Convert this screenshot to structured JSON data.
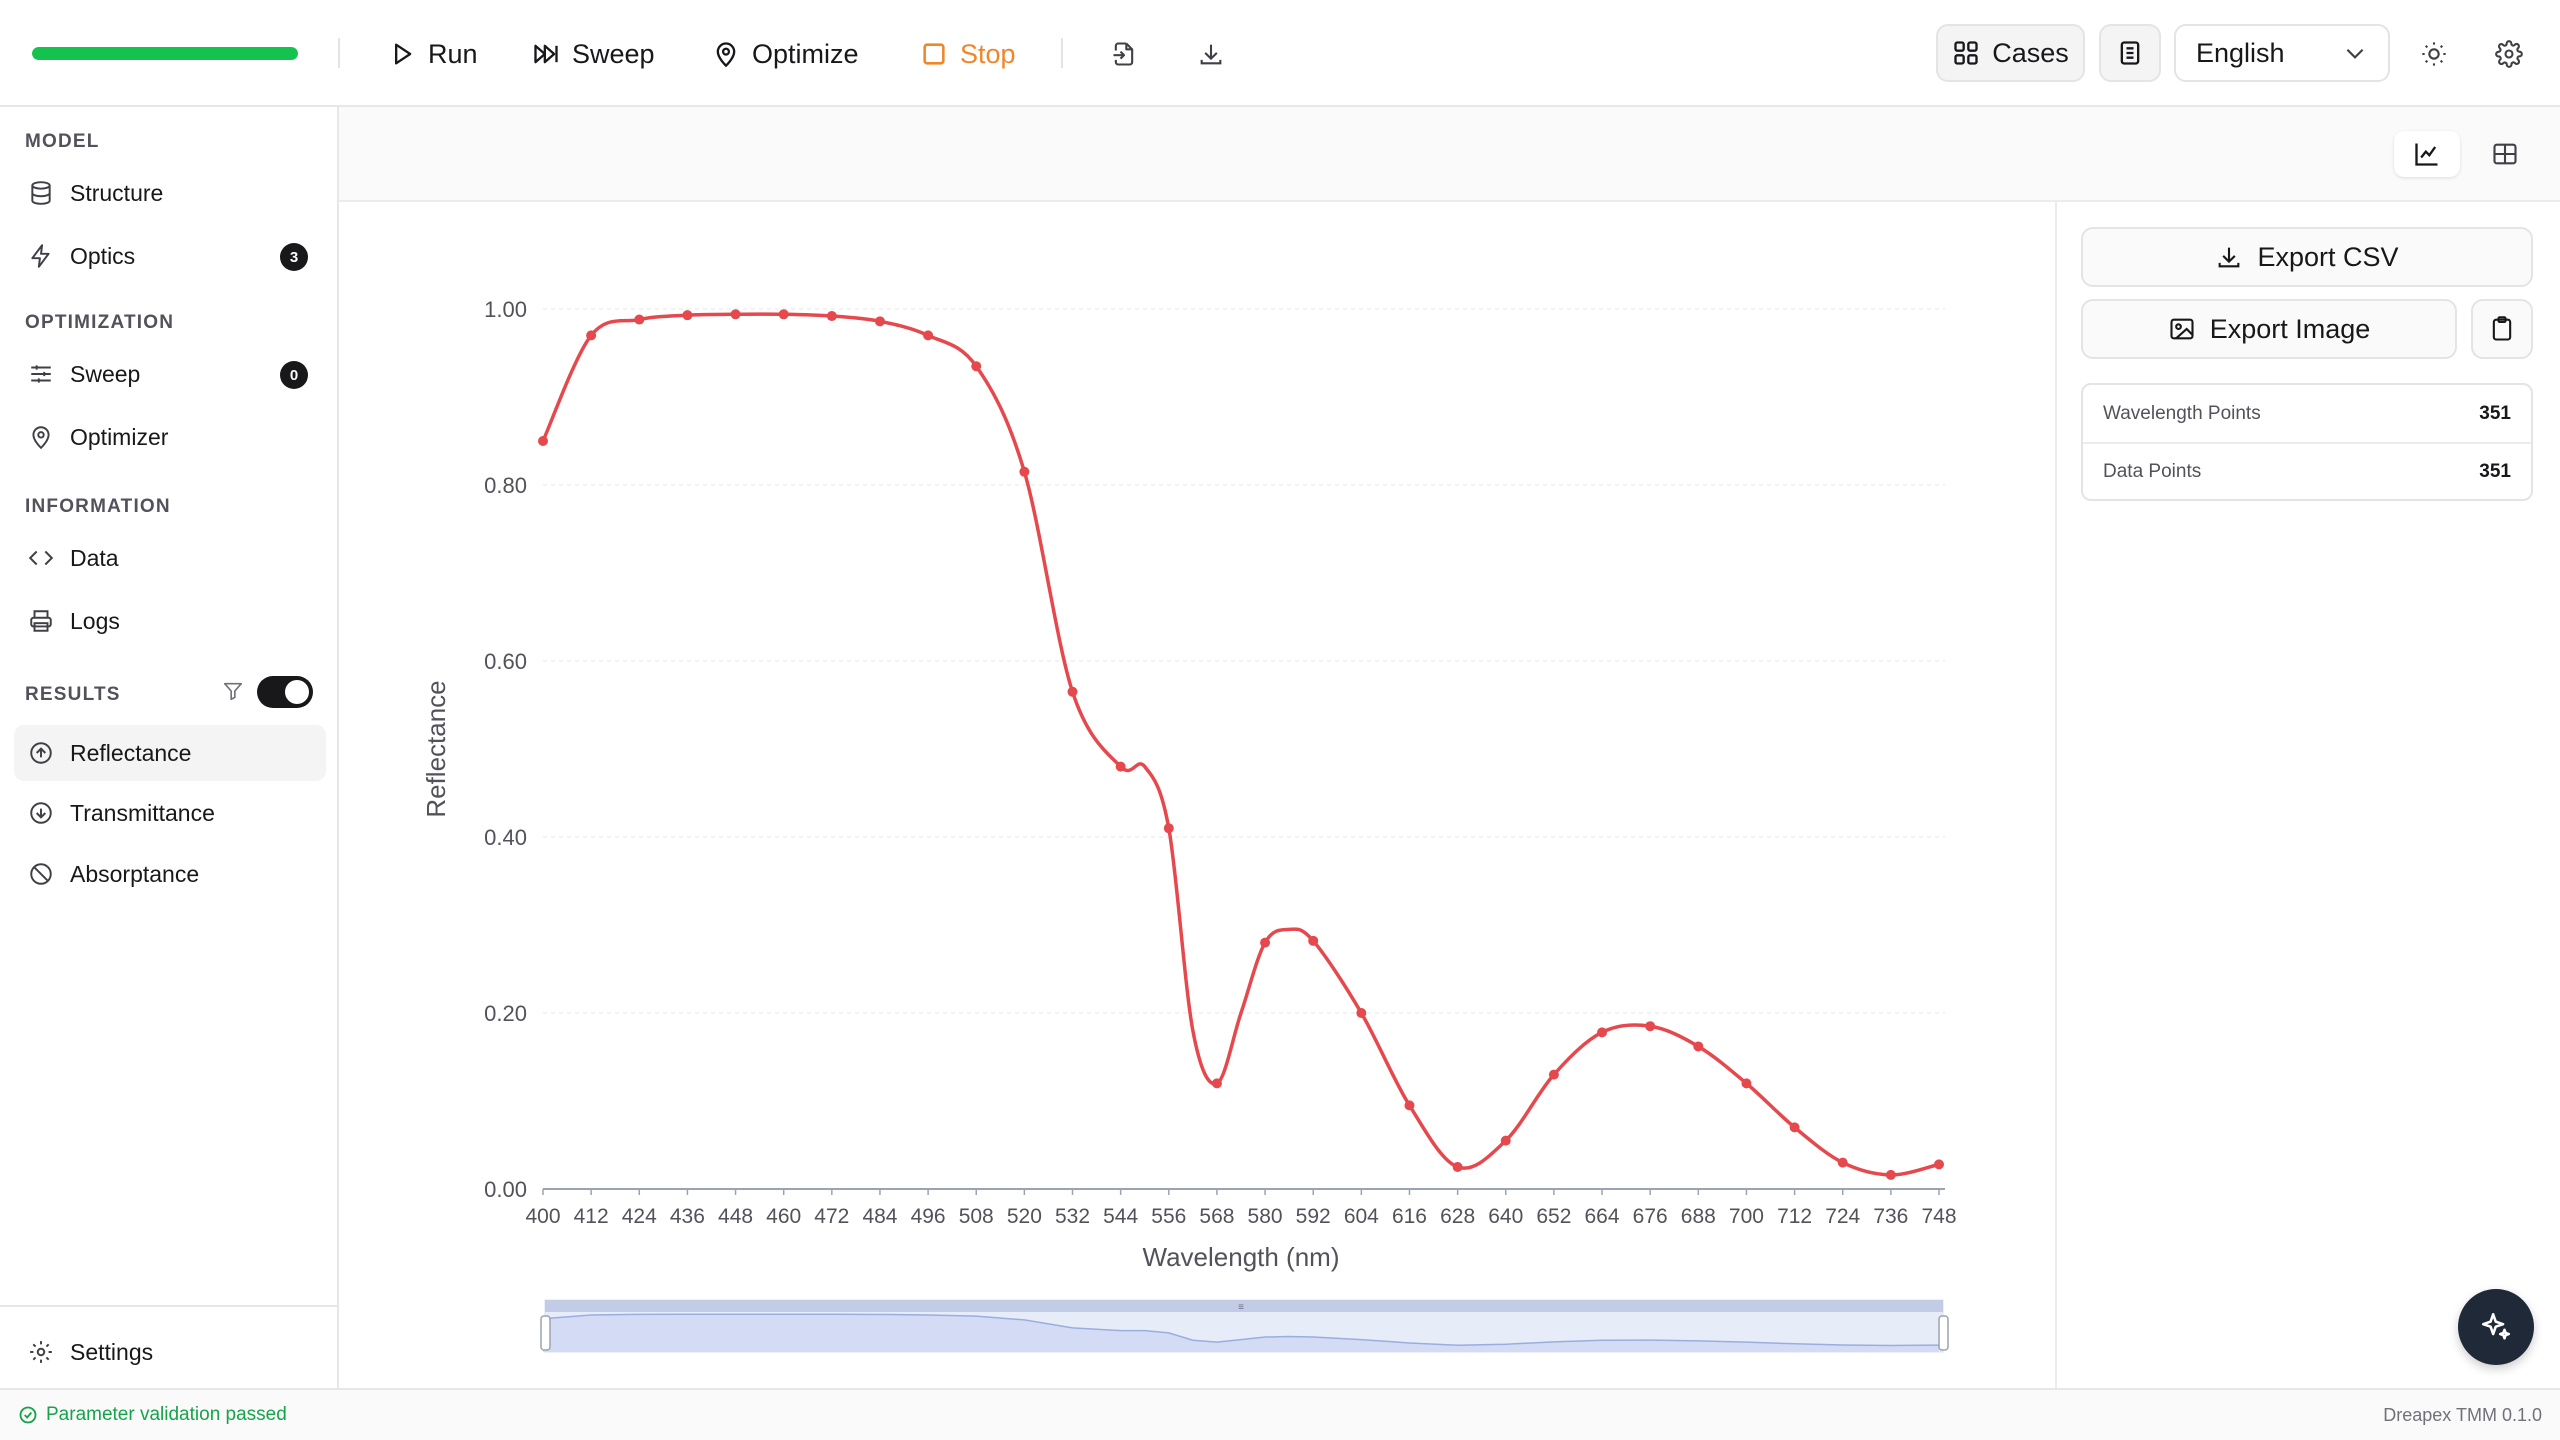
{
  "toolbar": {
    "progress": 1.0,
    "run_label": "Run",
    "sweep_label": "Sweep",
    "optimize_label": "Optimize",
    "stop_label": "Stop",
    "cases_label": "Cases",
    "language": "English"
  },
  "sidebar": {
    "model_title": "MODEL",
    "structure_label": "Structure",
    "optics_label": "Optics",
    "optics_count": "3",
    "optimization_title": "OPTIMIZATION",
    "sweep_label": "Sweep",
    "sweep_count": "0",
    "optimizer_label": "Optimizer",
    "information_title": "INFORMATION",
    "data_label": "Data",
    "logs_label": "Logs",
    "results_title": "RESULTS",
    "results_toggle_on": true,
    "reflectance_label": "Reflectance",
    "transmittance_label": "Transmittance",
    "absorptance_label": "Absorptance",
    "settings_label": "Settings"
  },
  "panel": {
    "export_csv_label": "Export CSV",
    "export_image_label": "Export Image",
    "wavelength_points_label": "Wavelength Points",
    "wavelength_points_value": "351",
    "data_points_label": "Data Points",
    "data_points_value": "351"
  },
  "status": {
    "message": "Parameter validation passed",
    "version": "Dreapex TMM 0.1.0"
  },
  "colors": {
    "accent_green": "#14c24e",
    "stop_orange": "#f0862a",
    "series_red": "#e5484d"
  },
  "chart_data": {
    "type": "line",
    "title": "",
    "xlabel": "Wavelength (nm)",
    "ylabel": "Reflectance",
    "xlim": [
      400,
      750
    ],
    "ylim": [
      0,
      1.0
    ],
    "yticks": [
      "0.00",
      "0.20",
      "0.40",
      "0.60",
      "0.80",
      "1.00"
    ],
    "xticks": [
      "400",
      "412",
      "424",
      "436",
      "448",
      "460",
      "472",
      "484",
      "496",
      "508",
      "520",
      "532",
      "544",
      "556",
      "568",
      "580",
      "592",
      "604",
      "616",
      "628",
      "640",
      "652",
      "664",
      "676",
      "688",
      "700",
      "712",
      "724",
      "736",
      "748"
    ],
    "grid": true,
    "legend": "none",
    "series": [
      {
        "x": [
          400,
          412,
          424,
          436,
          448,
          460,
          472,
          484,
          496,
          508,
          520,
          532,
          544,
          550,
          556,
          562,
          568,
          574,
          580,
          586,
          592,
          604,
          616,
          628,
          640,
          652,
          664,
          676,
          688,
          700,
          712,
          724,
          736,
          748
        ],
        "values": [
          0.85,
          0.97,
          0.988,
          0.993,
          0.994,
          0.994,
          0.992,
          0.986,
          0.97,
          0.935,
          0.815,
          0.565,
          0.48,
          0.48,
          0.41,
          0.18,
          0.12,
          0.2,
          0.28,
          0.295,
          0.282,
          0.2,
          0.095,
          0.025,
          0.055,
          0.13,
          0.178,
          0.185,
          0.162,
          0.12,
          0.07,
          0.03,
          0.016,
          0.028
        ]
      }
    ],
    "markers_x": [
      400,
      412,
      424,
      436,
      448,
      460,
      472,
      484,
      496,
      508,
      520,
      532,
      544,
      556,
      568,
      580,
      592,
      604,
      616,
      628,
      640,
      652,
      664,
      676,
      688,
      700,
      712,
      724,
      736,
      748
    ],
    "zoom_range": [
      0,
      1
    ]
  }
}
